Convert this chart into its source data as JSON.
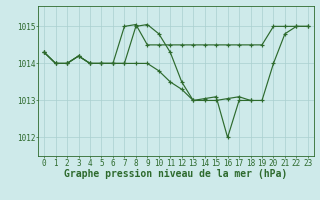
{
  "title": "Graphe pression niveau de la mer (hPa)",
  "lines": [
    {
      "x": [
        0,
        1,
        2,
        3,
        4,
        5,
        6,
        7,
        8,
        9,
        10,
        11,
        12,
        13,
        14,
        15,
        16,
        17,
        18,
        19,
        20,
        21,
        22,
        23
      ],
      "y": [
        1014.3,
        1014.0,
        1014.0,
        1014.2,
        1014.0,
        1014.0,
        1014.0,
        1015.0,
        1015.05,
        1014.5,
        1014.5,
        1014.5,
        1014.5,
        1014.5,
        1014.5,
        1014.5,
        1014.5,
        1014.5,
        1014.5,
        1014.5,
        1015.0,
        1015.0,
        1015.0,
        1015.0
      ]
    },
    {
      "x": [
        0,
        1,
        2,
        3,
        4,
        5,
        6,
        7,
        8,
        9,
        10,
        11,
        12,
        13,
        14,
        15,
        16,
        17,
        18,
        19,
        20,
        21,
        22,
        23
      ],
      "y": [
        1014.3,
        1014.0,
        1014.0,
        1014.2,
        1014.0,
        1014.0,
        1014.0,
        1014.0,
        1015.0,
        1015.05,
        1014.8,
        1014.3,
        1013.5,
        1013.0,
        1013.0,
        1013.0,
        1013.05,
        1013.1,
        1013.0,
        1013.0,
        1014.0,
        1014.8,
        1015.0,
        1015.0
      ]
    },
    {
      "x": [
        0,
        1,
        2,
        3,
        4,
        5,
        6,
        7,
        8,
        9,
        10,
        11,
        12,
        13,
        14,
        15,
        16,
        17,
        18
      ],
      "y": [
        1014.3,
        1014.0,
        1014.0,
        1014.2,
        1014.0,
        1014.0,
        1014.0,
        1014.0,
        1014.0,
        1014.0,
        1013.8,
        1013.5,
        1013.3,
        1013.0,
        1013.05,
        1013.1,
        1012.0,
        1013.0,
        1013.0
      ]
    }
  ],
  "color": "#2d6a2d",
  "bg_color": "#ceeaea",
  "grid_color": "#aacfcf",
  "xlim": [
    -0.5,
    23.5
  ],
  "ylim": [
    1011.5,
    1015.55
  ],
  "yticks": [
    1012,
    1013,
    1014,
    1015
  ],
  "xticks": [
    0,
    1,
    2,
    3,
    4,
    5,
    6,
    7,
    8,
    9,
    10,
    11,
    12,
    13,
    14,
    15,
    16,
    17,
    18,
    19,
    20,
    21,
    22,
    23
  ],
  "title_fontsize": 7,
  "tick_fontsize": 5.5,
  "linewidth": 0.85,
  "markersize": 2.5
}
